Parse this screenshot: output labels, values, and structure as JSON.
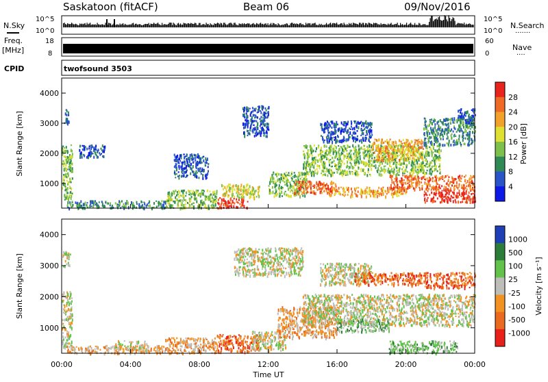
{
  "header": {
    "station": "Saskatoon (fitACF)",
    "beam": "Beam 06",
    "date": "09/Nov/2016"
  },
  "strip": {
    "nsky_label": "N.Sky",
    "nsearch_label": "N.Search",
    "nsearch_dots": "·······",
    "noise_ticks_left": [
      "10^5",
      "10^0"
    ],
    "noise_ticks_right": [
      "10^5",
      "10^0"
    ],
    "freq_label": "Freq.",
    "freq_unit": "[MHz]",
    "freq_ticks": [
      "18",
      "8"
    ],
    "nave_label": "Nave",
    "nave_dots": "····",
    "nave_ticks": [
      "60",
      "0"
    ],
    "cpid_label": "CPID",
    "cpid_text": "twofsound 3503"
  },
  "colors": {
    "power": [
      "#0d1ae6",
      "#2a55c9",
      "#2f8a56",
      "#7dc04b",
      "#dfe033",
      "#f2a12a",
      "#ef6a25",
      "#e8241c"
    ],
    "velocity": [
      "#1f3fb7",
      "#2d7d3a",
      "#62c24a",
      "#bdbdb9",
      "#f29222",
      "#ea6a20",
      "#e8201a"
    ]
  },
  "chart_data": [
    {
      "type": "heatmap",
      "name": "Power",
      "xlabel": "",
      "ylabel": "Slant Range [km]",
      "x_ticks": [
        "00:00",
        "04:00",
        "08:00",
        "12:00",
        "16:00",
        "20:00",
        "00:00"
      ],
      "xlim_hours": [
        0,
        24
      ],
      "ylim_km": [
        180,
        4500
      ],
      "y_ticks": [
        1000,
        2000,
        3000,
        4000
      ],
      "colorbar": {
        "label": "Power [dB]",
        "ticks": [
          4,
          8,
          12,
          16,
          20,
          24,
          28
        ],
        "range": [
          0,
          30
        ]
      },
      "echo_regions": [
        {
          "t0": 0.0,
          "t1": 0.6,
          "r0": 400,
          "r1": 2300,
          "level": 3
        },
        {
          "t0": 0.1,
          "t1": 0.4,
          "r0": 3000,
          "r1": 3500,
          "level": 1
        },
        {
          "t0": 1.0,
          "t1": 2.5,
          "r0": 1900,
          "r1": 2300,
          "level": 1
        },
        {
          "t0": 0.3,
          "t1": 6.0,
          "r0": 200,
          "r1": 450,
          "level": 2
        },
        {
          "t0": 6.0,
          "t1": 9.0,
          "r0": 200,
          "r1": 800,
          "level": 3
        },
        {
          "t0": 6.5,
          "t1": 8.5,
          "r0": 1200,
          "r1": 2000,
          "level": 1
        },
        {
          "t0": 9.0,
          "t1": 10.8,
          "r0": 200,
          "r1": 550,
          "level": 7
        },
        {
          "t0": 9.2,
          "t1": 11.5,
          "r0": 550,
          "r1": 1000,
          "level": 4
        },
        {
          "t0": 10.5,
          "t1": 12.0,
          "r0": 2600,
          "r1": 3600,
          "level": 1
        },
        {
          "t0": 12.0,
          "t1": 14.2,
          "r0": 600,
          "r1": 1400,
          "level": 3
        },
        {
          "t0": 13.5,
          "t1": 16.0,
          "r0": 700,
          "r1": 1100,
          "level": 6
        },
        {
          "t0": 14.0,
          "t1": 22.0,
          "r0": 1300,
          "r1": 2300,
          "level": 3
        },
        {
          "t0": 15.0,
          "t1": 18.0,
          "r0": 2400,
          "r1": 3100,
          "level": 1
        },
        {
          "t0": 15.5,
          "t1": 20.0,
          "r0": 600,
          "r1": 900,
          "level": 5
        },
        {
          "t0": 18.0,
          "t1": 21.0,
          "r0": 1800,
          "r1": 2500,
          "level": 5
        },
        {
          "t0": 19.0,
          "t1": 24.0,
          "r0": 800,
          "r1": 1300,
          "level": 6
        },
        {
          "t0": 21.0,
          "t1": 24.0,
          "r0": 400,
          "r1": 800,
          "level": 7
        },
        {
          "t0": 21.0,
          "t1": 24.0,
          "r0": 2300,
          "r1": 3200,
          "level": 2
        },
        {
          "t0": 23.0,
          "t1": 24.0,
          "r0": 3000,
          "r1": 3500,
          "level": 1
        }
      ]
    },
    {
      "type": "heatmap",
      "name": "Velocity",
      "xlabel": "Time UT",
      "ylabel": "Slant Range [km]",
      "x_ticks": [
        "00:00",
        "04:00",
        "08:00",
        "12:00",
        "16:00",
        "20:00",
        "00:00"
      ],
      "xlim_hours": [
        0,
        24
      ],
      "ylim_km": [
        180,
        4500
      ],
      "y_ticks": [
        1000,
        2000,
        3000,
        4000
      ],
      "colorbar": {
        "label": "Velocity [m s⁻¹]",
        "ticks": [
          "1000",
          "500",
          "100",
          "25",
          "-25",
          "-100",
          "-500",
          "-1000"
        ]
      },
      "echo_regions": [
        {
          "t0": 0.0,
          "t1": 0.6,
          "r0": 400,
          "r1": 2200,
          "level": 3
        },
        {
          "t0": 0.0,
          "t1": 0.5,
          "r0": 3000,
          "r1": 3500,
          "level": 3
        },
        {
          "t0": 0.3,
          "t1": 6.0,
          "r0": 200,
          "r1": 450,
          "level": 4
        },
        {
          "t0": 6.0,
          "t1": 9.0,
          "r0": 200,
          "r1": 700,
          "level": 4
        },
        {
          "t0": 3.0,
          "t1": 5.0,
          "r0": 300,
          "r1": 600,
          "level": 3
        },
        {
          "t0": 9.0,
          "t1": 11.5,
          "r0": 250,
          "r1": 800,
          "level": 5
        },
        {
          "t0": 11.0,
          "t1": 13.0,
          "r0": 300,
          "r1": 900,
          "level": 3
        },
        {
          "t0": 12.5,
          "t1": 16.0,
          "r0": 700,
          "r1": 1700,
          "level": 4
        },
        {
          "t0": 14.0,
          "t1": 24.0,
          "r0": 1100,
          "r1": 2100,
          "level": 3
        },
        {
          "t0": 15.0,
          "t1": 18.0,
          "r0": 2400,
          "r1": 3100,
          "level": 3
        },
        {
          "t0": 17.0,
          "t1": 21.0,
          "r0": 2400,
          "r1": 2800,
          "level": 5
        },
        {
          "t0": 19.0,
          "t1": 23.0,
          "r0": 200,
          "r1": 600,
          "level": 2
        },
        {
          "t0": 16.0,
          "t1": 19.0,
          "r0": 900,
          "r1": 1300,
          "level": 2
        },
        {
          "t0": 21.0,
          "t1": 24.0,
          "r0": 2300,
          "r1": 2800,
          "level": 5
        },
        {
          "t0": 10.0,
          "t1": 14.0,
          "r0": 2700,
          "r1": 3600,
          "level": 3
        }
      ]
    }
  ]
}
